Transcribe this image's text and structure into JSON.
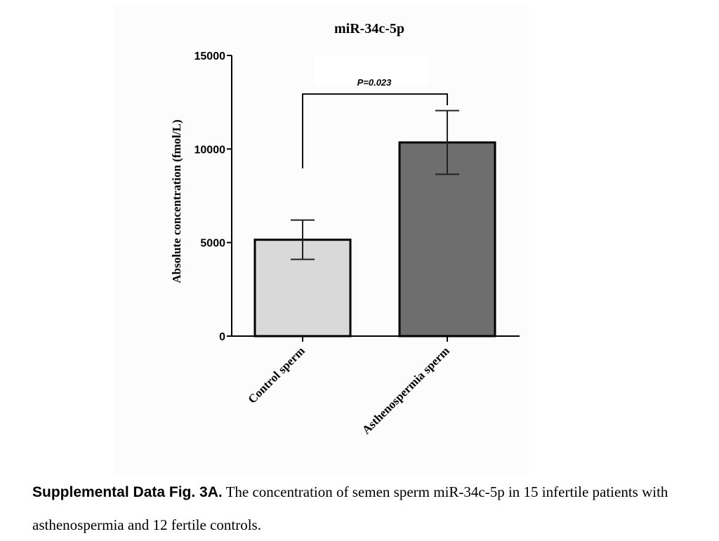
{
  "chart_data": {
    "type": "bar",
    "title": "miR-34c-5p",
    "ylabel": "Absolute  concentration (fmol/L)",
    "xlabel": "",
    "ylim": [
      0,
      15000
    ],
    "yticks": [
      0,
      5000,
      10000,
      15000
    ],
    "categories": [
      "Control sperm",
      "Asthenospermia sperm"
    ],
    "series": [
      {
        "values": [
          5150,
          10350
        ],
        "error_lower": [
          4100,
          8650
        ],
        "error_upper": [
          6200,
          12050
        ],
        "colors": [
          "#d9d9d9",
          "#6e6e6e"
        ]
      }
    ],
    "annotation": {
      "text": "P=0.023",
      "between": [
        0,
        1
      ]
    },
    "grid": false,
    "legend": "none"
  },
  "caption": {
    "label": "Supplemental Data Fig. 3A.",
    "text": " The concentration of semen sperm miR-34c-5p in 15 infertile patients with asthenospermia and 12 fertile controls."
  }
}
